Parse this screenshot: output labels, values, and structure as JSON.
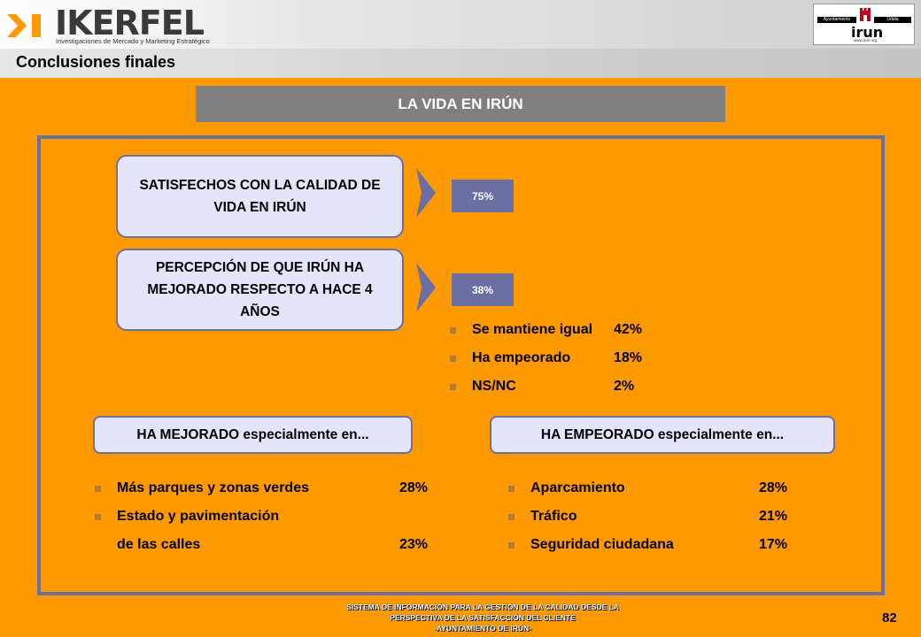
{
  "header": {
    "logo_text": "IKERFEL",
    "logo_subtitle": "Investigaciones de Mercado y Marketing Estratégico",
    "section_title": "Conclusiones finales",
    "partner_logo": {
      "left_label": "Ayuntamiento",
      "right_label": "Udala",
      "word": "irun",
      "url": "www.irun.org"
    }
  },
  "main": {
    "title": "LA VIDA EN IRÚN",
    "items": [
      {
        "label": "SATISFECHOS CON LA CALIDAD DE VIDA EN IRÚN",
        "value": "75%"
      },
      {
        "label": "PERCEPCIÓN DE QUE IRÚN HA MEJORADO RESPECTO A HACE 4 AÑOS",
        "value": "38%"
      }
    ],
    "breakdown": [
      {
        "label": "Se mantiene igual",
        "value": "42%"
      },
      {
        "label": "Ha empeorado",
        "value": "18%"
      },
      {
        "label": "NS/NC",
        "value": "2%"
      }
    ],
    "improved": {
      "header": "HA MEJORADO especialmente en...",
      "items": [
        {
          "label": "Más parques y zonas verdes",
          "value": "28%"
        },
        {
          "label": "Estado y pavimentación",
          "value": ""
        },
        {
          "label": "de las calles",
          "value": "23%"
        }
      ]
    },
    "worsened": {
      "header": "HA EMPEORADO especialmente en...",
      "items": [
        {
          "label": "Aparcamiento",
          "value": "28%"
        },
        {
          "label": "Tráfico",
          "value": "21%"
        },
        {
          "label": "Seguridad ciudadana",
          "value": "17%"
        }
      ]
    }
  },
  "footer": {
    "line1": "SISTEMA DE INFORMACIÓN PARA LA GESTIÓN DE LA CALIDAD DESDE LA",
    "line2": "PERSPECTIVA DE LA SATISFACCIÓN DEL CLIENTE",
    "line3": "-AYUNTAMIENTO DE IRÚN-",
    "page_number": "82"
  },
  "colors": {
    "background": "#FF9900",
    "accent": "#6B6FA3",
    "pill_fill": "#E4E4FA",
    "title_bar": "#808080"
  }
}
